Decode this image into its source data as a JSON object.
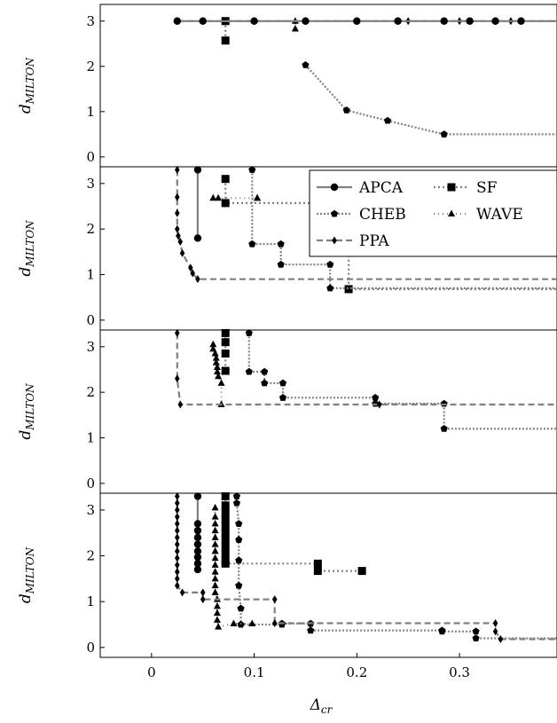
{
  "chart_data": {
    "type": "line",
    "xlabel": "Δcr",
    "ylabel": "dMILTON",
    "xlim": [
      -0.05,
      0.395
    ],
    "ylim": [
      -0.1,
      3.25
    ],
    "xticks": [
      "0",
      "0.1",
      "0.2",
      "0.3"
    ],
    "xtick_values": [
      0,
      0.1,
      0.2,
      0.3
    ],
    "yticks": [
      "0",
      "1",
      "2",
      "3"
    ],
    "ytick_values": [
      0,
      1,
      2,
      3
    ],
    "legend": {
      "placement": "right, second panel",
      "entries": [
        {
          "key": "APCA",
          "label": "APCA"
        },
        {
          "key": "SF",
          "label": "SF"
        },
        {
          "key": "CHEB",
          "label": "CHEB"
        },
        {
          "key": "WAVE",
          "label": "WAVE"
        },
        {
          "key": "PPA",
          "label": "PPA"
        }
      ]
    },
    "styles": {
      "APCA": {
        "color": "#808080",
        "dash": "",
        "marker": "circle"
      },
      "SF": {
        "color": "#808080",
        "dash": "2 3",
        "marker": "square"
      },
      "CHEB": {
        "color": "#808080",
        "dash": "2 2",
        "marker": "pentagon"
      },
      "WAVE": {
        "color": "#808080",
        "dash": "1 4",
        "marker": "triangle"
      },
      "PPA": {
        "color": "#808080",
        "dash": "7 4",
        "marker": "diamond"
      }
    },
    "panels": [
      {
        "series": [
          {
            "key": "CHEB",
            "points": [
              [
                0.15,
                2.03
              ],
              [
                0.19,
                1.03
              ],
              [
                0.23,
                0.8
              ],
              [
                0.285,
                0.5
              ],
              [
                0.4,
                0.5
              ]
            ]
          },
          {
            "key": "SF",
            "points": [
              [
                0.072,
                2.57
              ],
              [
                0.072,
                3.0
              ]
            ]
          },
          {
            "key": "WAVE",
            "points": [
              [
                0.14,
                2.83
              ],
              [
                0.14,
                3.0
              ]
            ]
          },
          {
            "key": "PPA",
            "points": [
              [
                0.025,
                3.0
              ],
              [
                0.05,
                3.0
              ],
              [
                0.1,
                3.0
              ],
              [
                0.15,
                3.0
              ],
              [
                0.2,
                3.0
              ],
              [
                0.25,
                3.0
              ],
              [
                0.3,
                3.0
              ],
              [
                0.35,
                3.0
              ],
              [
                0.4,
                3.0
              ]
            ]
          },
          {
            "key": "APCA",
            "points": [
              [
                0.025,
                3.0
              ],
              [
                0.05,
                3.0
              ],
              [
                0.1,
                3.0
              ],
              [
                0.15,
                3.0
              ],
              [
                0.2,
                3.0
              ],
              [
                0.24,
                3.0
              ],
              [
                0.285,
                3.0
              ],
              [
                0.31,
                3.0
              ],
              [
                0.335,
                3.0
              ],
              [
                0.36,
                3.0
              ],
              [
                0.4,
                3.0
              ]
            ]
          }
        ]
      },
      {
        "series": [
          {
            "key": "APCA",
            "points": [
              [
                0.045,
                3.3
              ],
              [
                0.045,
                1.8
              ]
            ]
          },
          {
            "key": "SF",
            "points": [
              [
                0.072,
                3.1
              ],
              [
                0.072,
                2.57
              ],
              [
                0.192,
                2.57
              ],
              [
                0.192,
                0.68
              ],
              [
                0.4,
                0.68
              ]
            ]
          },
          {
            "key": "CHEB",
            "points": [
              [
                0.098,
                3.3
              ],
              [
                0.098,
                1.67
              ],
              [
                0.126,
                1.67
              ],
              [
                0.126,
                1.22
              ],
              [
                0.174,
                1.22
              ],
              [
                0.174,
                0.7
              ],
              [
                0.4,
                0.7
              ]
            ]
          },
          {
            "key": "WAVE",
            "points": [
              [
                0.06,
                2.68
              ],
              [
                0.065,
                2.68
              ],
              [
                0.103,
                2.68
              ],
              [
                0.103,
                2.68
              ]
            ]
          },
          {
            "key": "PPA",
            "points": [
              [
                0.025,
                3.3
              ],
              [
                0.025,
                2.7
              ],
              [
                0.025,
                2.35
              ],
              [
                0.025,
                2.0
              ],
              [
                0.026,
                1.85
              ],
              [
                0.028,
                1.72
              ],
              [
                0.03,
                1.47
              ],
              [
                0.038,
                1.15
              ],
              [
                0.04,
                1.03
              ],
              [
                0.045,
                0.9
              ],
              [
                0.4,
                0.9
              ]
            ]
          }
        ]
      },
      {
        "series": [
          {
            "key": "SF",
            "points": [
              [
                0.072,
                3.3
              ],
              [
                0.072,
                3.1
              ],
              [
                0.072,
                2.85
              ],
              [
                0.072,
                2.47
              ]
            ]
          },
          {
            "key": "WAVE",
            "points": [
              [
                0.06,
                3.05
              ],
              [
                0.06,
                2.95
              ],
              [
                0.062,
                2.85
              ],
              [
                0.063,
                2.75
              ],
              [
                0.063,
                2.65
              ],
              [
                0.064,
                2.55
              ],
              [
                0.064,
                2.45
              ],
              [
                0.065,
                2.35
              ],
              [
                0.068,
                2.2
              ],
              [
                0.068,
                1.73
              ]
            ]
          },
          {
            "key": "CHEB",
            "points": [
              [
                0.095,
                3.3
              ],
              [
                0.095,
                2.45
              ],
              [
                0.11,
                2.45
              ],
              [
                0.11,
                2.2
              ],
              [
                0.128,
                2.2
              ],
              [
                0.128,
                1.88
              ],
              [
                0.218,
                1.88
              ],
              [
                0.218,
                1.75
              ],
              [
                0.285,
                1.75
              ],
              [
                0.285,
                1.2
              ],
              [
                0.4,
                1.2
              ]
            ]
          },
          {
            "key": "PPA",
            "points": [
              [
                0.025,
                3.3
              ],
              [
                0.025,
                2.3
              ],
              [
                0.028,
                1.73
              ],
              [
                0.222,
                1.73
              ],
              [
                0.4,
                1.73
              ]
            ]
          }
        ]
      },
      {
        "series": [
          {
            "key": "APCA",
            "points": [
              [
                0.045,
                3.3
              ],
              [
                0.045,
                2.7
              ],
              [
                0.045,
                2.55
              ],
              [
                0.045,
                2.4
              ],
              [
                0.045,
                2.25
              ],
              [
                0.045,
                2.1
              ],
              [
                0.045,
                1.97
              ],
              [
                0.045,
                1.83
              ],
              [
                0.045,
                1.7
              ]
            ]
          },
          {
            "key": "SF",
            "points": [
              [
                0.072,
                3.3
              ],
              [
                0.072,
                3.1
              ],
              [
                0.072,
                2.95
              ],
              [
                0.072,
                2.8
              ],
              [
                0.072,
                2.65
              ],
              [
                0.072,
                2.5
              ],
              [
                0.072,
                2.35
              ],
              [
                0.072,
                2.2
              ],
              [
                0.072,
                2.05
              ],
              [
                0.072,
                1.9
              ],
              [
                0.072,
                1.83
              ],
              [
                0.162,
                1.83
              ],
              [
                0.162,
                1.67
              ],
              [
                0.205,
                1.67
              ]
            ]
          },
          {
            "key": "CHEB",
            "points": [
              [
                0.083,
                3.3
              ],
              [
                0.083,
                3.15
              ],
              [
                0.085,
                2.7
              ],
              [
                0.085,
                2.35
              ],
              [
                0.085,
                1.9
              ],
              [
                0.085,
                1.35
              ],
              [
                0.087,
                0.85
              ],
              [
                0.087,
                0.5
              ],
              [
                0.127,
                0.5
              ],
              [
                0.127,
                0.52
              ],
              [
                0.155,
                0.52
              ],
              [
                0.155,
                0.37
              ],
              [
                0.283,
                0.37
              ],
              [
                0.283,
                0.35
              ],
              [
                0.316,
                0.35
              ],
              [
                0.316,
                0.2
              ],
              [
                0.4,
                0.2
              ]
            ]
          },
          {
            "key": "WAVE",
            "points": [
              [
                0.062,
                3.05
              ],
              [
                0.062,
                2.85
              ],
              [
                0.062,
                2.7
              ],
              [
                0.062,
                2.55
              ],
              [
                0.062,
                2.4
              ],
              [
                0.062,
                2.25
              ],
              [
                0.062,
                2.1
              ],
              [
                0.062,
                1.95
              ],
              [
                0.062,
                1.8
              ],
              [
                0.062,
                1.65
              ],
              [
                0.062,
                1.5
              ],
              [
                0.062,
                1.35
              ],
              [
                0.062,
                1.2
              ],
              [
                0.064,
                1.05
              ],
              [
                0.064,
                0.9
              ],
              [
                0.064,
                0.75
              ],
              [
                0.064,
                0.6
              ],
              [
                0.065,
                0.45
              ],
              [
                0.08,
                0.52
              ],
              [
                0.098,
                0.52
              ]
            ]
          },
          {
            "key": "PPA",
            "points": [
              [
                0.025,
                3.3
              ],
              [
                0.025,
                3.15
              ],
              [
                0.025,
                3.0
              ],
              [
                0.025,
                2.85
              ],
              [
                0.025,
                2.7
              ],
              [
                0.025,
                2.55
              ],
              [
                0.025,
                2.4
              ],
              [
                0.025,
                2.25
              ],
              [
                0.025,
                2.1
              ],
              [
                0.025,
                1.95
              ],
              [
                0.025,
                1.8
              ],
              [
                0.025,
                1.65
              ],
              [
                0.025,
                1.5
              ],
              [
                0.025,
                1.35
              ],
              [
                0.03,
                1.2
              ],
              [
                0.05,
                1.2
              ],
              [
                0.05,
                1.05
              ],
              [
                0.12,
                1.05
              ],
              [
                0.12,
                0.53
              ],
              [
                0.335,
                0.53
              ],
              [
                0.335,
                0.35
              ],
              [
                0.34,
                0.18
              ],
              [
                0.4,
                0.18
              ]
            ]
          }
        ]
      }
    ]
  }
}
